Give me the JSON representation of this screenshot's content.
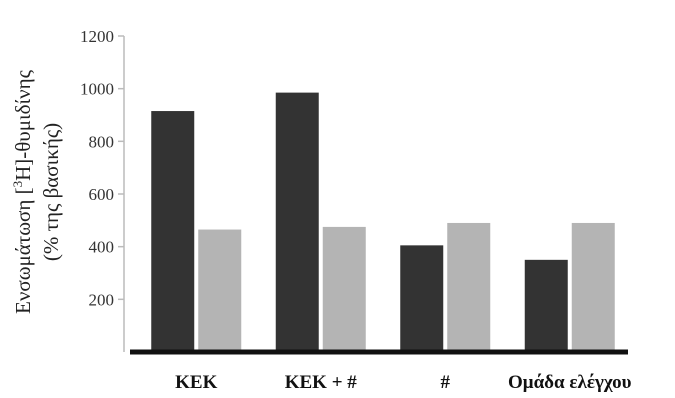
{
  "chart_data": {
    "type": "bar",
    "title": "",
    "xlabel": "",
    "ylabel_line1_pre": "Ενσωμάτωση [",
    "ylabel_line1_sup": "3",
    "ylabel_line1_post": "H]-θυμιδίνης",
    "ylabel_line2": "(% της βασικής)",
    "ylim": [
      0,
      1200
    ],
    "yticks": [
      200,
      400,
      600,
      800,
      1000,
      1200
    ],
    "categories": [
      "ΚΕΚ",
      "ΚΕΚ + #",
      "#",
      "Ομάδα ελέγχου"
    ],
    "series": [
      {
        "values": [
          915,
          985,
          405,
          350
        ],
        "color": "#333333"
      },
      {
        "values": [
          465,
          475,
          490,
          490
        ],
        "color": "#b4b4b4"
      }
    ],
    "grid": false,
    "legend": "none"
  }
}
